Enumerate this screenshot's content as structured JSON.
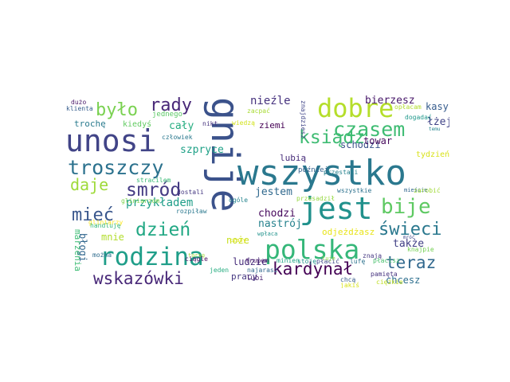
{
  "cloud": {
    "words": [
      {
        "text": "wszystko",
        "color": "#2a788e"
      },
      {
        "text": "gnije",
        "color": "#3b528b"
      },
      {
        "text": "unosi",
        "color": "#414487"
      },
      {
        "text": "polska",
        "color": "#35b779"
      },
      {
        "text": "jest",
        "color": "#21918c"
      },
      {
        "text": "rodzina",
        "color": "#1f9e89"
      },
      {
        "text": "bije",
        "color": "#5ec962"
      },
      {
        "text": "dobre",
        "color": "#b5de2b"
      },
      {
        "text": "czasem",
        "color": "#3fbc73"
      },
      {
        "text": "troszczy",
        "color": "#2c728e"
      },
      {
        "text": "ksiądz",
        "color": "#3fbc73"
      },
      {
        "text": "wskazówki",
        "color": "#482878"
      },
      {
        "text": "teraz",
        "color": "#31688e"
      },
      {
        "text": "smród",
        "color": "#443a83"
      },
      {
        "text": "dzień",
        "color": "#22a884"
      },
      {
        "text": "mieć",
        "color": "#39568c"
      },
      {
        "text": "świeci",
        "color": "#2a788e"
      },
      {
        "text": "kardynał",
        "color": "#440154"
      },
      {
        "text": "było",
        "color": "#7ad151"
      },
      {
        "text": "rady",
        "color": "#482878"
      },
      {
        "text": "daje",
        "color": "#9fda3a"
      },
      {
        "text": "przykładem",
        "color": "#1f9e89"
      },
      {
        "text": "nieźle",
        "color": "#46327e"
      },
      {
        "text": "bierzesz",
        "color": "#48186a"
      },
      {
        "text": "kasy",
        "color": "#365c8d"
      },
      {
        "text": "łżej",
        "color": "#404387"
      },
      {
        "text": "schodzi",
        "color": "#3b528b"
      },
      {
        "text": "towar",
        "color": "#46085c"
      },
      {
        "text": "szpryce",
        "color": "#1fa187"
      },
      {
        "text": "cały",
        "color": "#27ad81"
      },
      {
        "text": "lubią",
        "color": "#472c7a"
      },
      {
        "text": "jestem",
        "color": "#30698e"
      },
      {
        "text": "chodzi",
        "color": "#46085c"
      },
      {
        "text": "nastrój",
        "color": "#26828e"
      },
      {
        "text": "także",
        "color": "#424186"
      },
      {
        "text": "chcesz",
        "color": "#2e6f8e"
      },
      {
        "text": "ludzie",
        "color": "#472d7b"
      },
      {
        "text": "pracy",
        "color": "#453781"
      },
      {
        "text": "lubi",
        "color": "#481f70"
      },
      {
        "text": "marzenia",
        "color": "#3dbc74"
      },
      {
        "text": "błogi",
        "color": "#31678e"
      },
      {
        "text": "mnie",
        "color": "#b2dd2d"
      },
      {
        "text": "noże",
        "color": "#c8e020"
      },
      {
        "text": "odjeżdżasz",
        "color": "#e8e419"
      },
      {
        "text": "ziemi",
        "color": "#440154"
      },
      {
        "text": "trochę",
        "color": "#2a7b8e"
      },
      {
        "text": "kiedyś",
        "color": "#60ca60"
      },
      {
        "text": "dużo",
        "color": "#481769"
      },
      {
        "text": "klienta",
        "color": "#365d8d"
      },
      {
        "text": "jednego",
        "color": "#5ac864"
      },
      {
        "text": "nikt",
        "color": "#46337f"
      },
      {
        "text": "wiedzą",
        "color": "#d2e21b"
      },
      {
        "text": "zacpać",
        "color": "#a8db34"
      },
      {
        "text": "znajdziesz",
        "color": "#404588"
      },
      {
        "text": "opłacam",
        "color": "#b2dd2d"
      },
      {
        "text": "dogadać",
        "color": "#1f988b"
      },
      {
        "text": "tydzień",
        "color": "#d8e219"
      },
      {
        "text": "temu",
        "color": "#25848e"
      },
      {
        "text": "człowiek",
        "color": "#2a788e"
      },
      {
        "text": "później",
        "color": "#34618d"
      },
      {
        "text": "przestali",
        "color": "#26828e"
      },
      {
        "text": "stracilem",
        "color": "#3aba76"
      },
      {
        "text": "gliniarzom",
        "color": "#7fd34e"
      },
      {
        "text": "dostali",
        "color": "#453882"
      },
      {
        "text": "ogóle",
        "color": "#25848e"
      },
      {
        "text": "przesadził",
        "color": "#95d840"
      },
      {
        "text": "wszystkie",
        "color": "#2c718e"
      },
      {
        "text": "mieście",
        "color": "#31668e"
      },
      {
        "text": "zarobić",
        "color": "#a0da39"
      },
      {
        "text": "gliniarzy",
        "color": "#fde725"
      },
      {
        "text": "handluję",
        "color": "#35b779"
      },
      {
        "text": "ciągle",
        "color": "#470d60"
      },
      {
        "text": "trupem",
        "color": "#48186a"
      },
      {
        "text": "minien",
        "color": "#21a685"
      },
      {
        "text": "stoję",
        "color": "#1f968b"
      },
      {
        "text": "płacić",
        "color": "#3e4989"
      },
      {
        "text": "lufę",
        "color": "#2c728e"
      },
      {
        "text": "płacisz",
        "color": "#4ac16d"
      },
      {
        "text": "knajpie",
        "color": "#75d054"
      },
      {
        "text": "mróć",
        "color": "#3f4788"
      },
      {
        "text": "jeden",
        "color": "#27ad81"
      },
      {
        "text": "najarasz",
        "color": "#31688e"
      },
      {
        "text": "chcą",
        "color": "#375a8c"
      },
      {
        "text": "pamięta",
        "color": "#46337f"
      },
      {
        "text": "ciężkie",
        "color": "#c0df25"
      },
      {
        "text": "jakiś",
        "color": "#d8e219"
      },
      {
        "text": "znają",
        "color": "#453882"
      },
      {
        "text": "luje",
        "color": "#90d743"
      },
      {
        "text": "można",
        "color": "#2f6c8e"
      },
      {
        "text": "rozpiław",
        "color": "#2a788e"
      },
      {
        "text": "torsę",
        "color": "#a2da37"
      },
      {
        "text": "czasy",
        "color": "#e2e418"
      },
      {
        "text": "wpłaca",
        "color": "#20928c"
      }
    ]
  }
}
